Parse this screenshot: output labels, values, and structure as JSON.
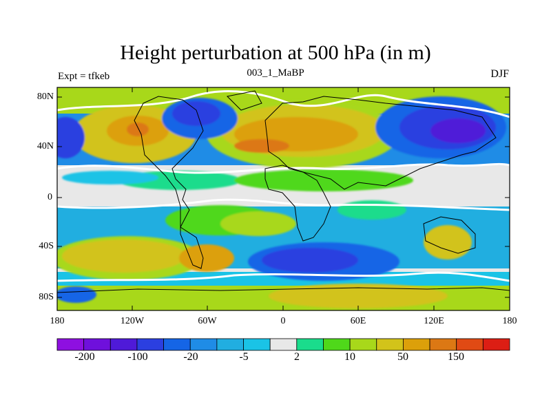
{
  "header": {
    "title": "Height perturbation at 500 hPa (in m)",
    "left": "Expt = tfkeb",
    "center": "003_1_MaBP",
    "right": "DJF"
  },
  "axes": {
    "y_ticks": [
      "80N",
      "40N",
      "0",
      "40S",
      "80S"
    ],
    "x_ticks": [
      "180",
      "120W",
      "60W",
      "0",
      "60E",
      "120E",
      "180"
    ]
  },
  "colorbar": {
    "colors": [
      "#8e10e0",
      "#6f10dc",
      "#4f1ad8",
      "#2b3fe0",
      "#1565e6",
      "#1f8ce6",
      "#21aee0",
      "#1ac3e6",
      "#e8e8e8",
      "#1adc8c",
      "#4fd81a",
      "#a8d81a",
      "#d2c31a",
      "#dca00a",
      "#dc7814",
      "#e04a14",
      "#dc1e14"
    ],
    "labels": [
      "-200",
      "-100",
      "-20",
      "-5",
      "2",
      "10",
      "50",
      "150"
    ]
  },
  "colors": {
    "land_outline": "#000000",
    "white_band": "#ffffff"
  }
}
